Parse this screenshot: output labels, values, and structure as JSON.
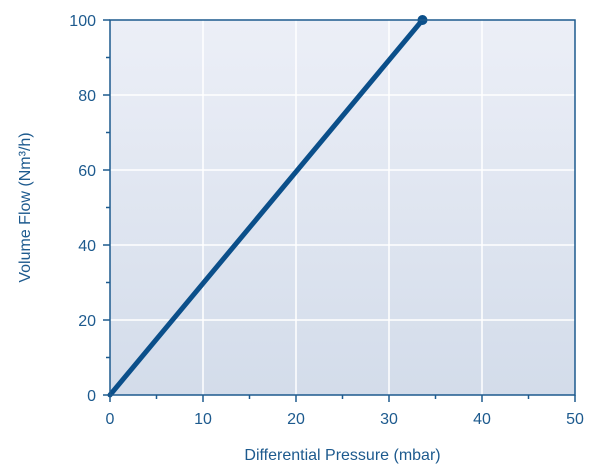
{
  "colors": {
    "series": "#0b4f8a",
    "axis": "#1d5a8e",
    "plot_bg_top": "#eceff7",
    "plot_bg_bottom": "#d3dcea",
    "grid": "#ffffff"
  },
  "chart_data": {
    "type": "line",
    "title": "",
    "xlabel": "Differential Pressure (mbar)",
    "ylabel": "Volume Flow (Nm³/h)",
    "xlim": [
      0,
      50
    ],
    "ylim": [
      0,
      100
    ],
    "xticks": [
      0,
      10,
      20,
      30,
      40,
      50
    ],
    "yticks": [
      0,
      20,
      40,
      60,
      80,
      100
    ],
    "grid": true,
    "series": [
      {
        "x": [
          0,
          33.6
        ],
        "y": [
          0,
          100
        ],
        "end_marker": true
      }
    ]
  }
}
